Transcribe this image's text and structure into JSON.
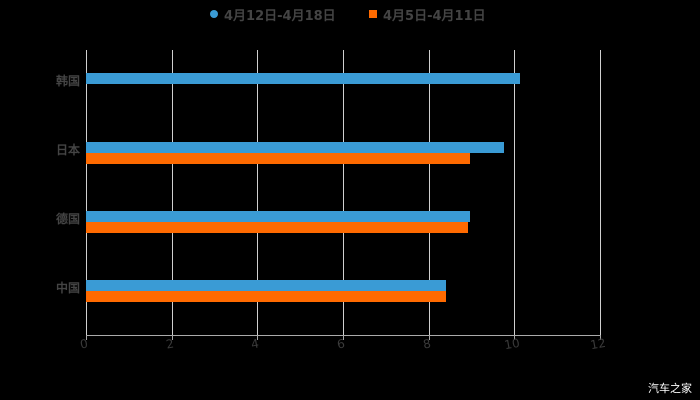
{
  "chart_data": {
    "type": "bar",
    "orientation": "horizontal",
    "title": "",
    "categories": [
      "韩国",
      "日本",
      "德国",
      "中国"
    ],
    "series": [
      {
        "name": "4月12日-4月18日",
        "color": "#3a9bd5",
        "values": [
          10.13,
          9.76,
          8.97,
          8.41
        ]
      },
      {
        "name": "4月5日-4月11日",
        "color": "#ff6a00",
        "values": [
          null,
          8.97,
          8.92,
          8.41
        ]
      }
    ],
    "xlabel": "",
    "ylabel": "",
    "xlim": [
      0,
      12
    ],
    "xticks": [
      "0",
      "2",
      "4",
      "6",
      "8",
      "10",
      "12"
    ],
    "grid": "vertical",
    "legend_position": "top"
  },
  "legend": {
    "series1": "4月12日-4月18日",
    "series2": "4月5日-4月11日"
  },
  "watermark": "汽车之家"
}
